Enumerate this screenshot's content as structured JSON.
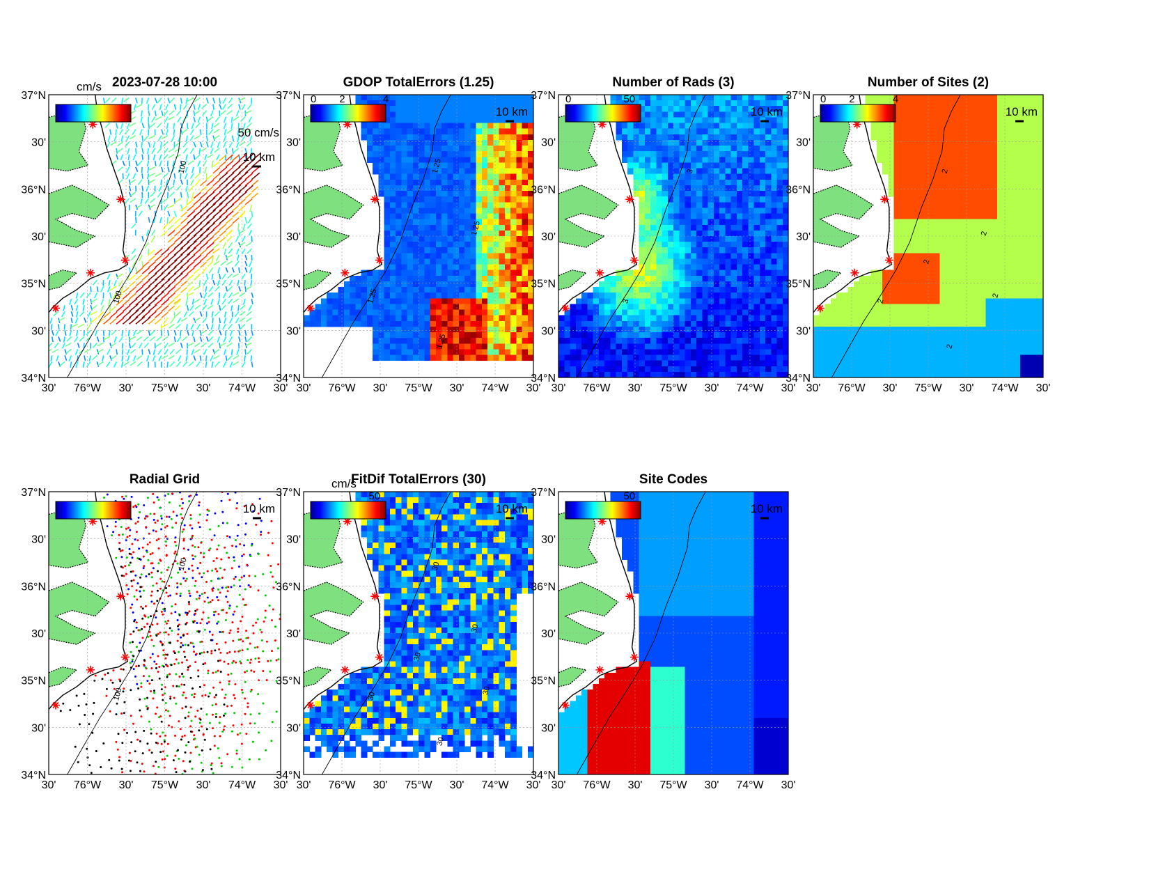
{
  "panels": [
    {
      "id": "currents",
      "title": "2023-07-28 10:00",
      "kind": "vectors",
      "colorbar_unit": "cm/s",
      "colorbar_ticks": [],
      "scale_vector_label": "50 cm/s",
      "scale_bar_label": "10 km",
      "contour_labels": [
        "100",
        "100"
      ]
    },
    {
      "id": "gdop",
      "title": "GDOP TotalErrors (1.25)",
      "kind": "gdop",
      "colorbar_unit": "",
      "colorbar_ticks": [
        "0",
        "2",
        "4"
      ],
      "scale_bar_label": "10 km",
      "contour_labels": [
        "1.25",
        "1.25",
        "1.25",
        "1.25"
      ]
    },
    {
      "id": "nrads",
      "title": "Number of Rads (3)",
      "kind": "nrads",
      "colorbar_unit": "",
      "colorbar_ticks": [
        "0",
        "50"
      ],
      "scale_bar_label": "10 km",
      "contour_labels": [
        "3",
        "3"
      ]
    },
    {
      "id": "nsites",
      "title": "Number of Sites (2)",
      "kind": "nsites",
      "colorbar_unit": "",
      "colorbar_ticks": [
        "0",
        "2",
        "4"
      ],
      "scale_bar_label": "10 km",
      "contour_labels": [
        "2",
        "2",
        "2",
        "2",
        "2",
        "2"
      ]
    },
    {
      "id": "radialgrid",
      "title": "Radial Grid",
      "kind": "radial",
      "colorbar_unit": "",
      "colorbar_ticks": [],
      "scale_bar_label": "10 km",
      "contour_labels": [
        "100",
        "100"
      ]
    },
    {
      "id": "fitdif",
      "title": "FitDif TotalErrors (30)",
      "kind": "fitdif",
      "colorbar_unit": "cm/s",
      "colorbar_ticks": [
        "50"
      ],
      "scale_bar_label": "10 km",
      "contour_labels": [
        "30",
        "30",
        "30",
        "30",
        "30",
        "30"
      ]
    },
    {
      "id": "sitecodes",
      "title": "Site Codes",
      "kind": "sitecodes",
      "colorbar_unit": "",
      "colorbar_ticks": [
        "50"
      ],
      "scale_bar_label": "10 km",
      "contour_labels": []
    }
  ],
  "axes": {
    "lat_labels": [
      "37°N",
      "30'",
      "36°N",
      "30'",
      "35°N",
      "30'",
      "34°N"
    ],
    "lon_labels": [
      "30'",
      "76°W",
      "30'",
      "75°W",
      "30'",
      "74°W",
      "30'"
    ]
  },
  "colors": {
    "land": "#7fe07f",
    "site_marker": "#ff0000",
    "radial_site_colors": [
      "#0000ff",
      "#ff0000",
      "#00cc00",
      "#ff0000",
      "#000000"
    ]
  }
}
